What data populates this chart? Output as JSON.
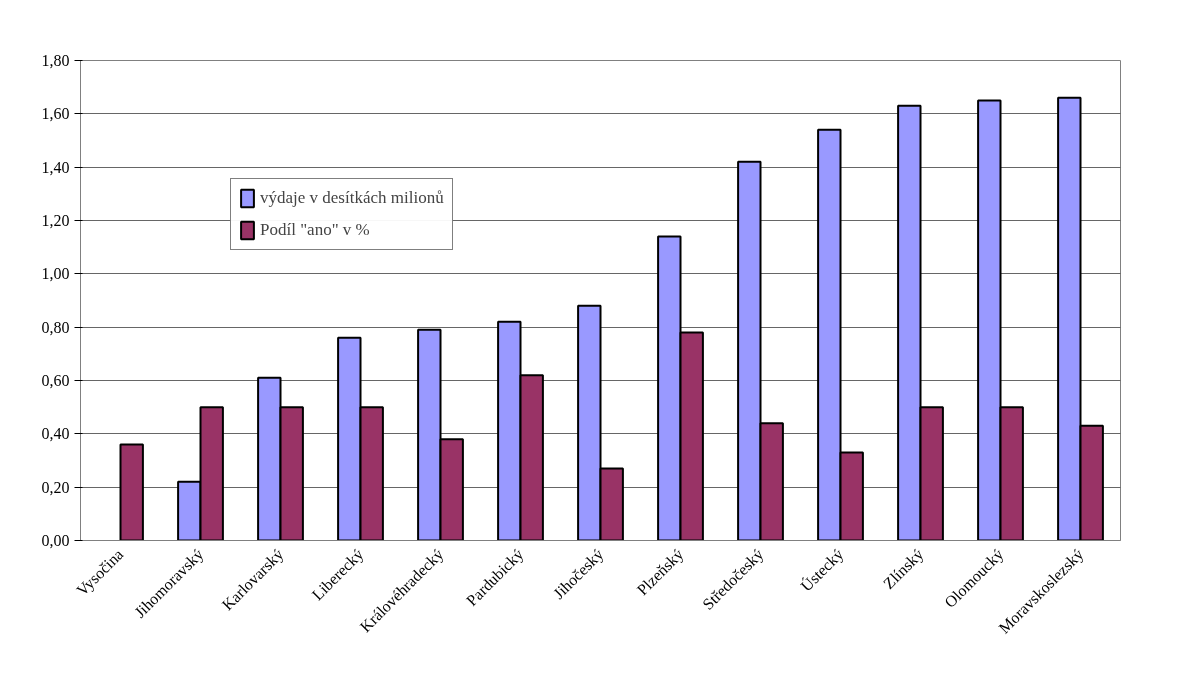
{
  "chart_data": {
    "type": "bar",
    "categories": [
      "Vysočina",
      "Jihomoravský",
      "Karlovarský",
      "Liberecký",
      "Královéhradecký",
      "Pardubický",
      "Jihočeský",
      "Plzeňský",
      "Středočeský",
      "Ústecký",
      "Zlínský",
      "Olomoucký",
      "Moravskoslezský"
    ],
    "series": [
      {
        "name": "výdaje v desítkách milionů",
        "color": "#9999ff",
        "values": [
          null,
          0.22,
          0.61,
          0.76,
          0.79,
          0.82,
          0.88,
          1.14,
          1.42,
          1.54,
          1.63,
          1.65,
          1.66
        ]
      },
      {
        "name": "Podíl \"ano\" v %",
        "color": "#993366",
        "values": [
          0.36,
          0.5,
          0.5,
          0.5,
          0.38,
          0.62,
          0.27,
          0.78,
          0.44,
          0.33,
          0.5,
          0.5,
          0.43
        ]
      }
    ],
    "ylim": [
      0,
      1.8
    ],
    "yticks": [
      {
        "value": 0,
        "label": "0,00"
      },
      {
        "value": 0.2,
        "label": "0,20"
      },
      {
        "value": 0.4,
        "label": "0,40"
      },
      {
        "value": 0.6,
        "label": "0,60"
      },
      {
        "value": 0.8,
        "label": "0,80"
      },
      {
        "value": 1.0,
        "label": "1,00"
      },
      {
        "value": 1.2,
        "label": "1,20"
      },
      {
        "value": 1.4,
        "label": "1,40"
      },
      {
        "value": 1.6,
        "label": "1,60"
      },
      {
        "value": 1.8,
        "label": "1,80"
      }
    ],
    "grid": "y",
    "legend": "top left"
  }
}
